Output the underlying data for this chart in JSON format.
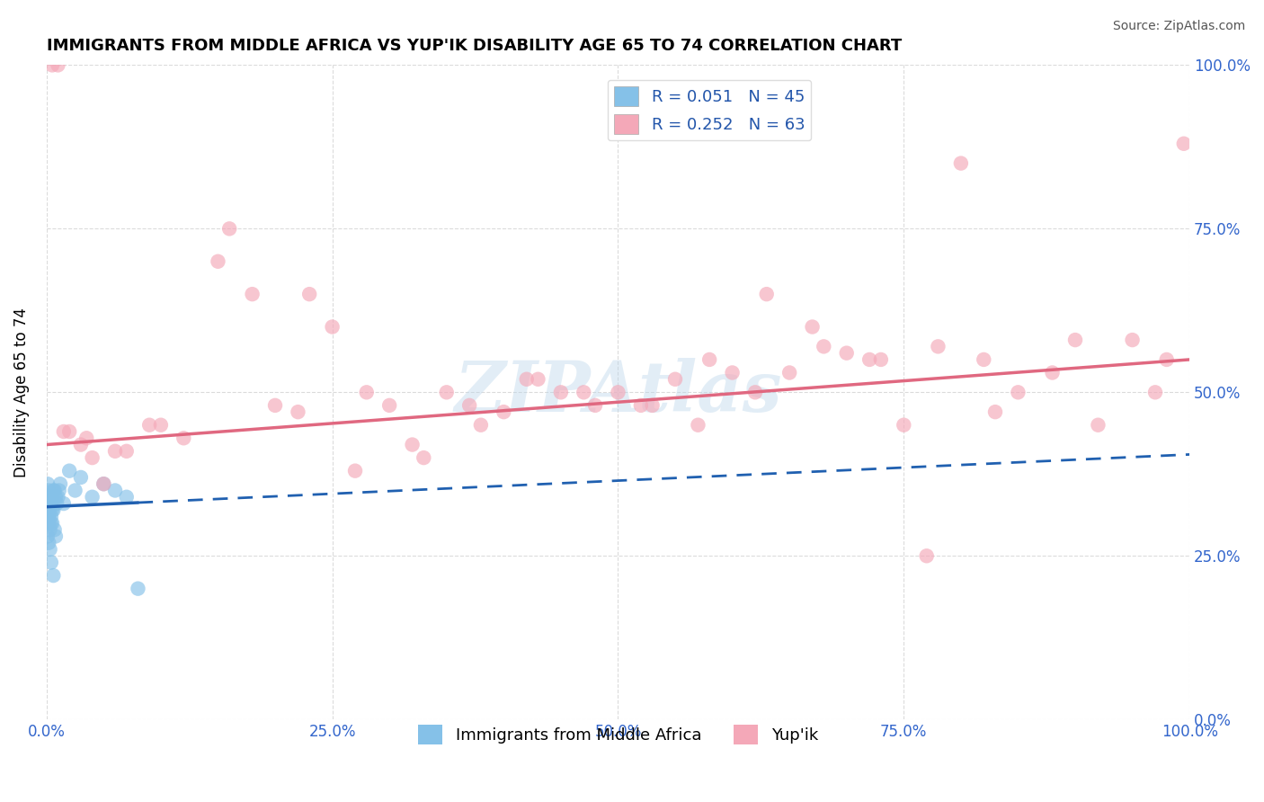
{
  "title": "IMMIGRANTS FROM MIDDLE AFRICA VS YUP'IK DISABILITY AGE 65 TO 74 CORRELATION CHART",
  "source": "Source: ZipAtlas.com",
  "xlabel": "",
  "ylabel": "Disability Age 65 to 74",
  "legend_label_blue": "Immigrants from Middle Africa",
  "legend_label_pink": "Yup'ik",
  "r_blue": 0.051,
  "n_blue": 45,
  "r_pink": 0.252,
  "n_pink": 63,
  "blue_color": "#85C1E8",
  "pink_color": "#F4A8B8",
  "blue_line_color": "#2060B0",
  "pink_line_color": "#E06880",
  "watermark": "ZIPAtlas",
  "xlim": [
    0,
    100
  ],
  "ylim": [
    0,
    100
  ],
  "xticks": [
    0,
    25,
    50,
    75,
    100
  ],
  "yticks": [
    0,
    25,
    50,
    75,
    100
  ],
  "xticklabels": [
    "0.0%",
    "25.0%",
    "50.0%",
    "75.0%",
    "100.0%"
  ],
  "yticklabels": [
    "0.0%",
    "25.0%",
    "50.0%",
    "75.0%",
    "100.0%"
  ],
  "blue_x": [
    0.1,
    0.1,
    0.1,
    0.1,
    0.2,
    0.2,
    0.2,
    0.3,
    0.3,
    0.3,
    0.4,
    0.4,
    0.5,
    0.5,
    0.6,
    0.7,
    0.8,
    0.9,
    1.0,
    1.1,
    0.1,
    0.1,
    0.2,
    0.2,
    0.3,
    0.4,
    0.5,
    0.6,
    0.7,
    0.8,
    1.2,
    1.5,
    2.0,
    2.5,
    3.0,
    4.0,
    5.0,
    6.0,
    7.0,
    8.0,
    0.1,
    0.2,
    0.3,
    0.4,
    0.6
  ],
  "blue_y": [
    34,
    33,
    32,
    31,
    35,
    33,
    30,
    34,
    32,
    29,
    33,
    31,
    34,
    30,
    32,
    35,
    28,
    33,
    34,
    35,
    36,
    32,
    34,
    31,
    33,
    30,
    32,
    35,
    29,
    34,
    36,
    33,
    38,
    35,
    37,
    34,
    36,
    35,
    34,
    20,
    28,
    27,
    26,
    24,
    22
  ],
  "pink_x": [
    0.5,
    1.0,
    2.0,
    3.0,
    4.0,
    5.0,
    7.0,
    9.0,
    12.0,
    15.0,
    18.0,
    20.0,
    22.0,
    25.0,
    28.0,
    30.0,
    32.0,
    35.0,
    38.0,
    40.0,
    42.0,
    45.0,
    48.0,
    50.0,
    52.0,
    55.0,
    58.0,
    60.0,
    62.0,
    65.0,
    68.0,
    70.0,
    72.0,
    75.0,
    78.0,
    80.0,
    82.0,
    85.0,
    88.0,
    90.0,
    92.0,
    95.0,
    97.0,
    98.0,
    99.5,
    1.5,
    3.5,
    6.0,
    10.0,
    16.0,
    23.0,
    27.0,
    33.0,
    37.0,
    43.0,
    47.0,
    53.0,
    57.0,
    63.0,
    67.0,
    73.0,
    77.0,
    83.0
  ],
  "pink_y": [
    100,
    100,
    44,
    42,
    40,
    36,
    41,
    45,
    43,
    70,
    65,
    48,
    47,
    60,
    50,
    48,
    42,
    50,
    45,
    47,
    52,
    50,
    48,
    50,
    48,
    52,
    55,
    53,
    50,
    53,
    57,
    56,
    55,
    45,
    57,
    85,
    55,
    50,
    53,
    58,
    45,
    58,
    50,
    55,
    88,
    44,
    43,
    41,
    45,
    75,
    65,
    38,
    40,
    48,
    52,
    50,
    48,
    45,
    65,
    60,
    55,
    25,
    47
  ],
  "blue_trend_x0": 0,
  "blue_trend_y0": 32.5,
  "blue_trend_x1": 100,
  "blue_trend_y1": 40.5,
  "blue_solid_end": 8.0,
  "pink_trend_x0": 0,
  "pink_trend_y0": 42.0,
  "pink_trend_x1": 100,
  "pink_trend_y1": 55.0
}
